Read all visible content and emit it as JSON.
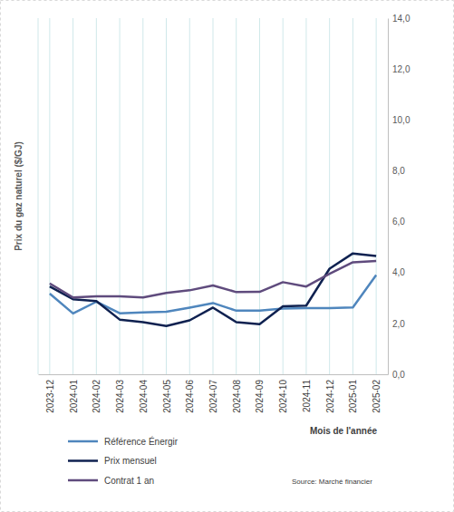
{
  "chart_data": {
    "type": "line",
    "y_label": "Prix du gaz naturel ($/GJ)",
    "x_label": "Mois de l'année",
    "source": "Source: Marché financier",
    "categories": [
      "2023-12",
      "2024-01",
      "2024-02",
      "2024-03",
      "2024-04",
      "2024-05",
      "2024-06",
      "2024-07",
      "2024-08",
      "2024-09",
      "2024-10",
      "2024-11",
      "2024-12",
      "2025-01",
      "2025-02"
    ],
    "series": [
      {
        "name": "Référence Énergir",
        "color": "#4f86bd",
        "values": [
          3.17,
          2.39,
          2.85,
          2.4,
          2.43,
          2.46,
          2.62,
          2.8,
          2.5,
          2.5,
          2.58,
          2.6,
          2.6,
          2.63,
          3.9
        ]
      },
      {
        "name": "Prix mensuel",
        "color": "#0f2150",
        "values": [
          3.45,
          2.95,
          2.88,
          2.15,
          2.05,
          1.9,
          2.12,
          2.62,
          2.05,
          1.97,
          2.67,
          2.7,
          4.15,
          4.75,
          4.65
        ]
      },
      {
        "name": "Contrat 1 an",
        "color": "#5f4b7d",
        "values": [
          3.57,
          3.02,
          3.06,
          3.06,
          3.02,
          3.2,
          3.3,
          3.49,
          3.23,
          3.24,
          3.62,
          3.45,
          3.95,
          4.4,
          4.45
        ]
      }
    ],
    "ylim": [
      0,
      14
    ],
    "yticks": [
      {
        "value": 0,
        "label": "0,0"
      },
      {
        "value": 2,
        "label": "2,0"
      },
      {
        "value": 4,
        "label": "4,0"
      },
      {
        "value": 6,
        "label": "6,0"
      },
      {
        "value": 8,
        "label": "8,0"
      },
      {
        "value": 10,
        "label": "10,0"
      },
      {
        "value": 12,
        "label": "12,0"
      },
      {
        "value": 14,
        "label": "14,0"
      }
    ],
    "grid": true,
    "legend": "bottom-left"
  }
}
